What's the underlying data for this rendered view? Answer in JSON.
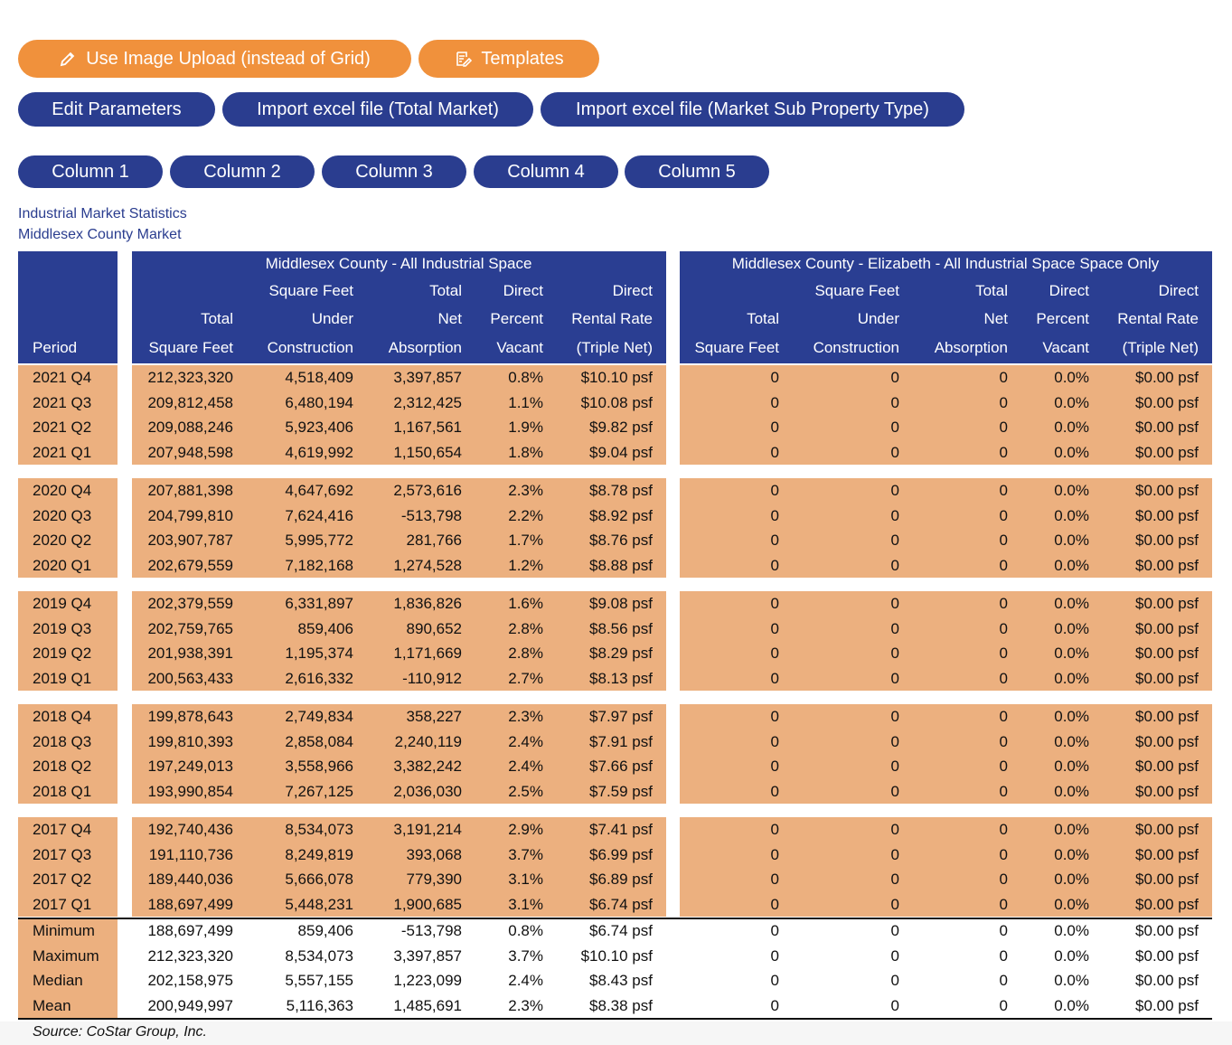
{
  "buttons": {
    "upload": "Use Image Upload (instead of Grid)",
    "templates": "Templates",
    "edit_parameters": "Edit Parameters",
    "import_total": "Import excel file (Total Market)",
    "import_sub": "Import excel file (Market Sub Property Type)"
  },
  "columns": [
    "Column 1",
    "Column 2",
    "Column 3",
    "Column 4",
    "Column 5"
  ],
  "caption": {
    "title": "Industrial Market Statistics",
    "subtitle": "Middlesex County Market"
  },
  "table": {
    "group_titles": [
      "Middlesex County - All Industrial Space",
      "Middlesex County - Elizabeth - All Industrial Space Space Only"
    ],
    "headers": [
      [
        "Period"
      ],
      [
        "Total",
        "Square Feet"
      ],
      [
        "Square Feet",
        "Under",
        "Construction"
      ],
      [
        "Total",
        "Net",
        "Absorption"
      ],
      [
        "Direct",
        "Percent",
        "Vacant"
      ],
      [
        "Direct",
        "Rental Rate",
        "(Triple Net)"
      ],
      [
        "Total",
        "Square Feet"
      ],
      [
        "Square Feet",
        "Under",
        "Construction"
      ],
      [
        "Total",
        "Net",
        "Absorption"
      ],
      [
        "Direct",
        "Percent",
        "Vacant"
      ],
      [
        "Direct",
        "Rental Rate",
        "(Triple Net)"
      ]
    ],
    "groups": [
      {
        "rows": [
          [
            "2021 Q4",
            "212,323,320",
            "4,518,409",
            "3,397,857",
            "0.8%",
            "$10.10 psf",
            "0",
            "0",
            "0",
            "0.0%",
            "$0.00 psf"
          ],
          [
            "2021 Q3",
            "209,812,458",
            "6,480,194",
            "2,312,425",
            "1.1%",
            "$10.08 psf",
            "0",
            "0",
            "0",
            "0.0%",
            "$0.00 psf"
          ],
          [
            "2021 Q2",
            "209,088,246",
            "5,923,406",
            "1,167,561",
            "1.9%",
            "$9.82 psf",
            "0",
            "0",
            "0",
            "0.0%",
            "$0.00 psf"
          ],
          [
            "2021 Q1",
            "207,948,598",
            "4,619,992",
            "1,150,654",
            "1.8%",
            "$9.04 psf",
            "0",
            "0",
            "0",
            "0.0%",
            "$0.00 psf"
          ]
        ]
      },
      {
        "rows": [
          [
            "2020 Q4",
            "207,881,398",
            "4,647,692",
            "2,573,616",
            "2.3%",
            "$8.78 psf",
            "0",
            "0",
            "0",
            "0.0%",
            "$0.00 psf"
          ],
          [
            "2020 Q3",
            "204,799,810",
            "7,624,416",
            "-513,798",
            "2.2%",
            "$8.92 psf",
            "0",
            "0",
            "0",
            "0.0%",
            "$0.00 psf"
          ],
          [
            "2020 Q2",
            "203,907,787",
            "5,995,772",
            "281,766",
            "1.7%",
            "$8.76 psf",
            "0",
            "0",
            "0",
            "0.0%",
            "$0.00 psf"
          ],
          [
            "2020 Q1",
            "202,679,559",
            "7,182,168",
            "1,274,528",
            "1.2%",
            "$8.88 psf",
            "0",
            "0",
            "0",
            "0.0%",
            "$0.00 psf"
          ]
        ]
      },
      {
        "rows": [
          [
            "2019 Q4",
            "202,379,559",
            "6,331,897",
            "1,836,826",
            "1.6%",
            "$9.08 psf",
            "0",
            "0",
            "0",
            "0.0%",
            "$0.00 psf"
          ],
          [
            "2019 Q3",
            "202,759,765",
            "859,406",
            "890,652",
            "2.8%",
            "$8.56 psf",
            "0",
            "0",
            "0",
            "0.0%",
            "$0.00 psf"
          ],
          [
            "2019 Q2",
            "201,938,391",
            "1,195,374",
            "1,171,669",
            "2.8%",
            "$8.29 psf",
            "0",
            "0",
            "0",
            "0.0%",
            "$0.00 psf"
          ],
          [
            "2019 Q1",
            "200,563,433",
            "2,616,332",
            "-110,912",
            "2.7%",
            "$8.13 psf",
            "0",
            "0",
            "0",
            "0.0%",
            "$0.00 psf"
          ]
        ]
      },
      {
        "rows": [
          [
            "2018 Q4",
            "199,878,643",
            "2,749,834",
            "358,227",
            "2.3%",
            "$7.97 psf",
            "0",
            "0",
            "0",
            "0.0%",
            "$0.00 psf"
          ],
          [
            "2018 Q3",
            "199,810,393",
            "2,858,084",
            "2,240,119",
            "2.4%",
            "$7.91 psf",
            "0",
            "0",
            "0",
            "0.0%",
            "$0.00 psf"
          ],
          [
            "2018 Q2",
            "197,249,013",
            "3,558,966",
            "3,382,242",
            "2.4%",
            "$7.66 psf",
            "0",
            "0",
            "0",
            "0.0%",
            "$0.00 psf"
          ],
          [
            "2018 Q1",
            "193,990,854",
            "7,267,125",
            "2,036,030",
            "2.5%",
            "$7.59 psf",
            "0",
            "0",
            "0",
            "0.0%",
            "$0.00 psf"
          ]
        ]
      },
      {
        "rows": [
          [
            "2017 Q4",
            "192,740,436",
            "8,534,073",
            "3,191,214",
            "2.9%",
            "$7.41 psf",
            "0",
            "0",
            "0",
            "0.0%",
            "$0.00 psf"
          ],
          [
            "2017 Q3",
            "191,110,736",
            "8,249,819",
            "393,068",
            "3.7%",
            "$6.99 psf",
            "0",
            "0",
            "0",
            "0.0%",
            "$0.00 psf"
          ],
          [
            "2017 Q2",
            "189,440,036",
            "5,666,078",
            "779,390",
            "3.1%",
            "$6.89 psf",
            "0",
            "0",
            "0",
            "0.0%",
            "$0.00 psf"
          ],
          [
            "2017 Q1",
            "188,697,499",
            "5,448,231",
            "1,900,685",
            "3.1%",
            "$6.74 psf",
            "0",
            "0",
            "0",
            "0.0%",
            "$0.00 psf"
          ]
        ]
      }
    ],
    "summary": [
      [
        "Minimum",
        "188,697,499",
        "859,406",
        "-513,798",
        "0.8%",
        "$6.74 psf",
        "0",
        "0",
        "0",
        "0.0%",
        "$0.00 psf"
      ],
      [
        "Maximum",
        "212,323,320",
        "8,534,073",
        "3,397,857",
        "3.7%",
        "$10.10 psf",
        "0",
        "0",
        "0",
        "0.0%",
        "$0.00 psf"
      ],
      [
        "Median",
        "202,158,975",
        "5,557,155",
        "1,223,099",
        "2.4%",
        "$8.43 psf",
        "0",
        "0",
        "0",
        "0.0%",
        "$0.00 psf"
      ],
      [
        "Mean",
        "200,949,997",
        "5,116,363",
        "1,485,691",
        "2.3%",
        "$8.38 psf",
        "0",
        "0",
        "0",
        "0.0%",
        "$0.00 psf"
      ]
    ]
  },
  "source": "Source: CoStar Group, Inc."
}
